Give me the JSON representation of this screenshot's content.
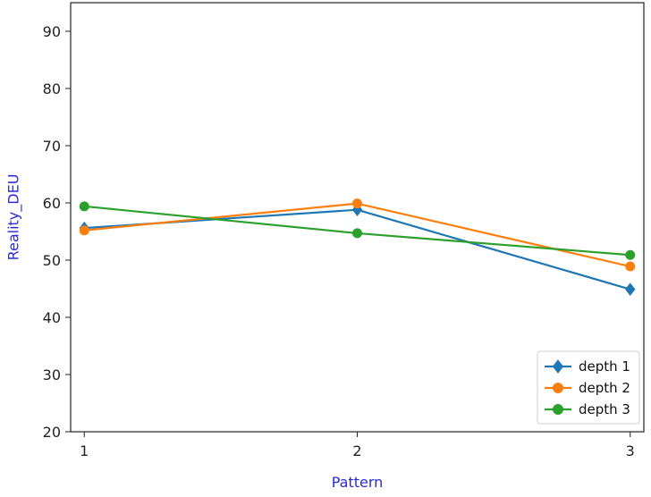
{
  "chart_data": {
    "type": "line",
    "title": "",
    "xlabel": "Pattern",
    "ylabel": "Reality_DEU",
    "x": [
      1,
      2,
      3
    ],
    "xlim": [
      0.95,
      3.05
    ],
    "ylim": [
      20,
      95
    ],
    "yticks": [
      20,
      30,
      40,
      50,
      60,
      70,
      80,
      90
    ],
    "xticks": [
      1,
      2,
      3
    ],
    "grid": false,
    "legend_position": "bottom-right",
    "series": [
      {
        "name": "depth 1",
        "values": [
          55.6,
          58.8,
          44.9
        ],
        "color": "#1f77b4",
        "marker": "diamond"
      },
      {
        "name": "depth 2",
        "values": [
          55.2,
          59.9,
          48.9
        ],
        "color": "#ff7f0e",
        "marker": "circle"
      },
      {
        "name": "depth 3",
        "values": [
          59.4,
          54.7,
          50.9
        ],
        "color": "#2ca02c",
        "marker": "circle"
      }
    ],
    "axis_label_color": "#2b2bd6"
  }
}
